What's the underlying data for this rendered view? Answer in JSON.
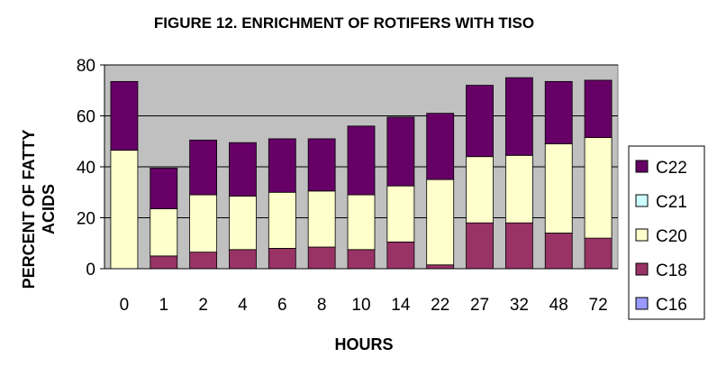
{
  "chart_data": {
    "type": "bar",
    "stacked": true,
    "title": "FIGURE 12. ENRICHMENT OF ROTIFERS WITH TISO",
    "xlabel": "HOURS",
    "ylabel_line1": "PERCENT OF FATTY",
    "ylabel_line2": "ACIDS",
    "ylim": [
      0,
      80
    ],
    "yticks": [
      0,
      20,
      40,
      60,
      80
    ],
    "grid": true,
    "legend_position": "right",
    "categories": [
      "0",
      "1",
      "2",
      "4",
      "6",
      "8",
      "10",
      "14",
      "22",
      "27",
      "32",
      "48",
      "72"
    ],
    "series": [
      {
        "name": "C16",
        "color": "#9999FF",
        "values": [
          0,
          0,
          0,
          0,
          0,
          0,
          0,
          0,
          0,
          0,
          0,
          0,
          0
        ]
      },
      {
        "name": "C18",
        "color": "#993366",
        "values": [
          0,
          5,
          6.5,
          7.5,
          8,
          8.5,
          7.5,
          10.5,
          1.5,
          18,
          18,
          14,
          12
        ]
      },
      {
        "name": "C20",
        "color": "#FFFFCC",
        "values": [
          46.5,
          18.5,
          22.5,
          21,
          22,
          22,
          21.5,
          22,
          33.5,
          26,
          26.5,
          35,
          39.5
        ]
      },
      {
        "name": "C21",
        "color": "#CCFFFF",
        "values": [
          0,
          0,
          0,
          0,
          0,
          0,
          0,
          0,
          0,
          0,
          0,
          0,
          0
        ]
      },
      {
        "name": "C22",
        "color": "#660066",
        "values": [
          27,
          16,
          21.5,
          21,
          21,
          20.5,
          27,
          27,
          26,
          28,
          30.5,
          24.5,
          22.5
        ]
      }
    ],
    "legend_order": [
      "C22",
      "C21",
      "C20",
      "C18",
      "C16"
    ],
    "plot_background": "#C0C0C0"
  }
}
